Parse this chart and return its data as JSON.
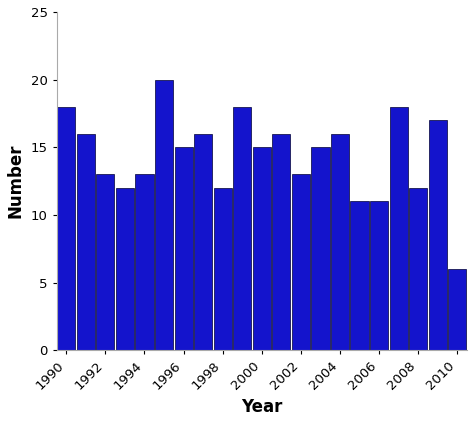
{
  "years": [
    1990,
    1991,
    1992,
    1993,
    1994,
    1995,
    1996,
    1997,
    1998,
    1999,
    2000,
    2001,
    2002,
    2003,
    2004,
    2005,
    2006,
    2007,
    2008,
    2009,
    2010
  ],
  "values": [
    18,
    16,
    13,
    12,
    13,
    20,
    15,
    16,
    12,
    18,
    15,
    16,
    13,
    15,
    16,
    11,
    11,
    18,
    12,
    17,
    6
  ],
  "bar_color": "#1414cc",
  "bar_edge_color": "#000033",
  "xlabel": "Year",
  "ylabel": "Number",
  "ylim": [
    0,
    25
  ],
  "yticks": [
    0,
    5,
    10,
    15,
    20,
    25
  ],
  "background_color": "#ffffff",
  "xlabel_fontsize": 12,
  "ylabel_fontsize": 12,
  "xlabel_fontweight": "bold",
  "ylabel_fontweight": "bold",
  "tick_labelsize": 9.5,
  "spine_color": "#aaaaaa"
}
